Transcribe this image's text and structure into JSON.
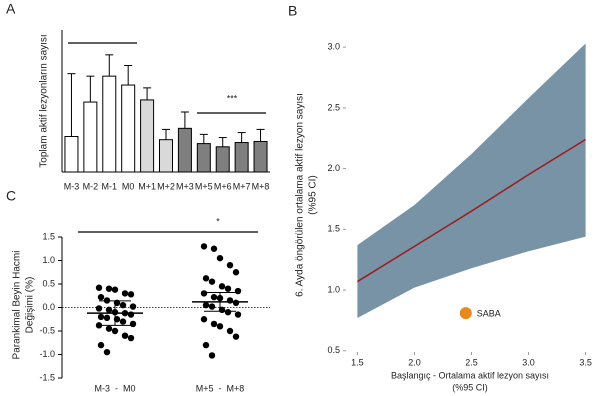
{
  "chart_data": [
    {
      "type": "bar",
      "panel_label": "A",
      "ylabel": "Toplam aktif lezyonların sayısı",
      "categories": [
        "M-3",
        "M-2",
        "M-1",
        "M0",
        "M+1",
        "M+2",
        "M+3",
        "M+5",
        "M+6",
        "M+7",
        "M+8"
      ],
      "values": [
        1.0,
        1.97,
        2.7,
        2.45,
        2.03,
        0.91,
        1.23,
        0.8,
        0.71,
        0.83,
        0.86
      ],
      "errors": [
        1.77,
        0.73,
        0.6,
        0.55,
        0.34,
        0.29,
        0.46,
        0.26,
        0.26,
        0.28,
        0.34
      ],
      "colors": [
        "#ffffff",
        "#ffffff",
        "#ffffff",
        "#ffffff",
        "#d9d9d9",
        "#d9d9d9",
        "#7f7f7f",
        "#7f7f7f",
        "#7f7f7f",
        "#7f7f7f",
        "#7f7f7f"
      ],
      "ylim": [
        0,
        4
      ],
      "annotation": "***"
    },
    {
      "type": "band",
      "panel_label": "B",
      "xlabel": [
        "Başlangıç - Ortalama aktif lezyon sayısı",
        "(%95 CI)"
      ],
      "ylabel": [
        "6. Ayda öngörülen ortalama aktif lezyon sayısı",
        "(%95 CI)"
      ],
      "x": [
        1.5,
        2.0,
        2.5,
        3.0,
        3.5
      ],
      "lower": [
        0.77,
        1.02,
        1.18,
        1.32,
        1.44
      ],
      "upper": [
        1.37,
        1.7,
        2.12,
        2.58,
        3.03
      ],
      "line": [
        1.07,
        1.36,
        1.65,
        1.95,
        2.24
      ],
      "band_color": "#7793a5",
      "line_color": "#9b1c1c",
      "point": {
        "name": "SABA",
        "x": 2.45,
        "y": 0.81,
        "color": "#e8891c"
      },
      "xlim": [
        1.4,
        3.6
      ],
      "ylim": [
        0.49,
        3.24
      ],
      "xticks": [
        1.5,
        {
          "value": 2,
          "label": "2.0"
        },
        2.5,
        {
          "value": 3,
          "label": "3.0"
        },
        3.5
      ],
      "yticks": [
        0.5,
        {
          "value": 1,
          "label": "1.0"
        },
        1.5,
        {
          "value": 2,
          "label": "2.0"
        },
        2.5,
        {
          "value": 3,
          "label": "3.0"
        }
      ]
    },
    {
      "type": "dot",
      "panel_label": "C",
      "ylabel": [
        "Parankimal Beyin Hacmi",
        "Değişimi (%)"
      ],
      "categories": [
        "M-3  -  M0",
        "M+5  -  M+8"
      ],
      "points": [
        [
          0.42,
          0.4,
          0.38,
          0.3,
          0.28,
          0.22,
          0.15,
          0.1,
          0.05,
          0.02,
          -0.02,
          -0.05,
          -0.1,
          -0.12,
          -0.15,
          -0.2,
          -0.22,
          -0.25,
          -0.3,
          -0.35,
          -0.38,
          -0.45,
          -0.5,
          -0.6,
          -0.65,
          -0.8,
          -0.95
        ],
        [
          1.3,
          1.25,
          1.05,
          0.9,
          0.75,
          0.62,
          0.55,
          0.45,
          0.4,
          0.35,
          0.3,
          0.22,
          0.2,
          0.15,
          0.1,
          0.05,
          0.02,
          -0.05,
          -0.1,
          -0.15,
          -0.25,
          -0.35,
          -0.4,
          -0.5,
          -0.62,
          -0.8,
          -1.02
        ]
      ],
      "means": [
        -0.12,
        0.12
      ],
      "sd": [
        0.26,
        0.2
      ],
      "ylim": [
        -1.5,
        1.5
      ],
      "yticks": [
        {
          "value": 1.5,
          "label": "1.5"
        },
        {
          "value": 1,
          "label": "1.0"
        },
        0.5,
        {
          "value": 0,
          "label": "0.0"
        },
        -0.5,
        {
          "value": -1,
          "label": "-1.0"
        },
        -1.5
      ],
      "annotation": "*"
    }
  ]
}
